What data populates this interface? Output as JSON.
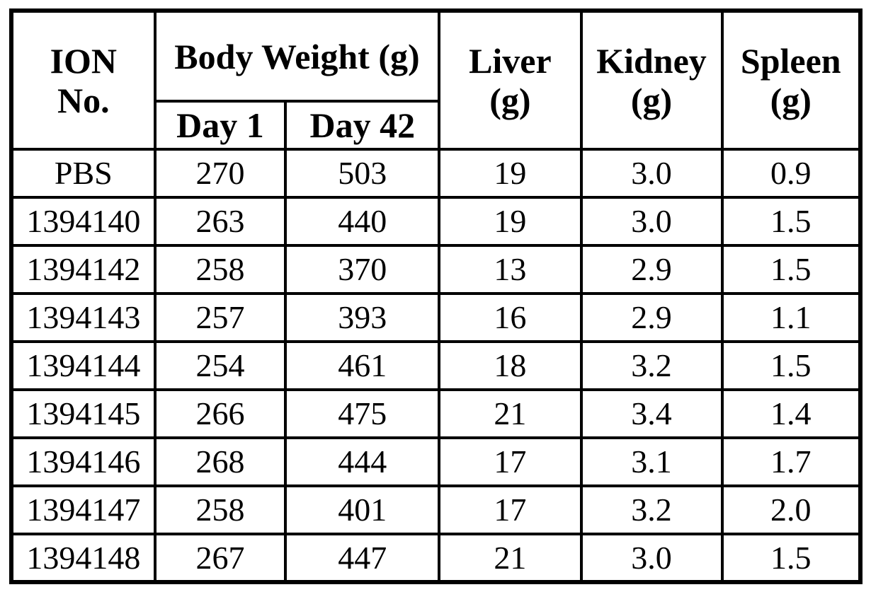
{
  "page": {
    "background_color": "#ffffff",
    "border_color": "#000000",
    "text_color": "#000000"
  },
  "table": {
    "header": {
      "ion_no": "ION\nNo.",
      "body_weight": "Body Weight (g)",
      "day1": "Day 1",
      "day42": "Day 42",
      "liver": "Liver\n(g)",
      "kidney": "Kidney\n(g)",
      "spleen": "Spleen\n(g)"
    },
    "rows": [
      {
        "ion": "PBS",
        "day1": "270",
        "day42": "503",
        "liver": "19",
        "kidney": "3.0",
        "spleen": "0.9"
      },
      {
        "ion": "1394140",
        "day1": "263",
        "day42": "440",
        "liver": "19",
        "kidney": "3.0",
        "spleen": "1.5"
      },
      {
        "ion": "1394142",
        "day1": "258",
        "day42": "370",
        "liver": "13",
        "kidney": "2.9",
        "spleen": "1.5"
      },
      {
        "ion": "1394143",
        "day1": "257",
        "day42": "393",
        "liver": "16",
        "kidney": "2.9",
        "spleen": "1.1"
      },
      {
        "ion": "1394144",
        "day1": "254",
        "day42": "461",
        "liver": "18",
        "kidney": "3.2",
        "spleen": "1.5"
      },
      {
        "ion": "1394145",
        "day1": "266",
        "day42": "475",
        "liver": "21",
        "kidney": "3.4",
        "spleen": "1.4"
      },
      {
        "ion": "1394146",
        "day1": "268",
        "day42": "444",
        "liver": "17",
        "kidney": "3.1",
        "spleen": "1.7"
      },
      {
        "ion": "1394147",
        "day1": "258",
        "day42": "401",
        "liver": "17",
        "kidney": "3.2",
        "spleen": "2.0"
      },
      {
        "ion": "1394148",
        "day1": "267",
        "day42": "447",
        "liver": "21",
        "kidney": "3.0",
        "spleen": "1.5"
      }
    ]
  },
  "chart_data": {
    "type": "table",
    "columns": [
      "ION No.",
      "Body Weight (g) Day 1",
      "Body Weight (g) Day 42",
      "Liver (g)",
      "Kidney (g)",
      "Spleen (g)"
    ],
    "rows": [
      [
        "PBS",
        270,
        503,
        19,
        3.0,
        0.9
      ],
      [
        "1394140",
        263,
        440,
        19,
        3.0,
        1.5
      ],
      [
        "1394142",
        258,
        370,
        13,
        2.9,
        1.5
      ],
      [
        "1394143",
        257,
        393,
        16,
        2.9,
        1.1
      ],
      [
        "1394144",
        254,
        461,
        18,
        3.2,
        1.5
      ],
      [
        "1394145",
        266,
        475,
        21,
        3.4,
        1.4
      ],
      [
        "1394146",
        268,
        444,
        17,
        3.1,
        1.7
      ],
      [
        "1394147",
        258,
        401,
        17,
        3.2,
        2.0
      ],
      [
        "1394148",
        267,
        447,
        21,
        3.0,
        1.5
      ]
    ]
  }
}
